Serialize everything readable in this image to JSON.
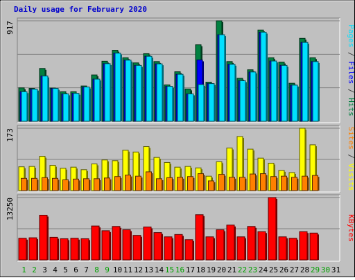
{
  "chart_data": {
    "type": "bar",
    "title": "Daily usage for February 2020",
    "days": [
      "1",
      "2",
      "3",
      "4",
      "5",
      "6",
      "7",
      "8",
      "9",
      "10",
      "11",
      "12",
      "13",
      "14",
      "15",
      "16",
      "17",
      "18",
      "19",
      "20",
      "21",
      "22",
      "23",
      "24",
      "25",
      "26",
      "27",
      "28",
      "29",
      "30",
      "31"
    ],
    "weekend_days": [
      1,
      2,
      8,
      9,
      15,
      16,
      22,
      23,
      29,
      30
    ],
    "panels": [
      {
        "id": "hits",
        "max_label": "917",
        "ymax": 917,
        "series": [
          {
            "name": "Hits",
            "color": "#008040",
            "values": [
              305,
              300,
              482,
              303,
              270,
              270,
              322,
              423,
              548,
              648,
              580,
              533,
              617,
              545,
              332,
              452,
              295,
              698,
              357,
              917,
              545,
              392,
              470,
              833,
              580,
              540,
              347,
              757,
              580
            ]
          },
          {
            "name": "Files",
            "color": "#0000ff",
            "values": [
              270,
              293,
              413,
              300,
              250,
              255,
              313,
              385,
              526,
              622,
              558,
              510,
              593,
              524,
              319,
              429,
              250,
              560,
              344,
              790,
              520,
              370,
              450,
              813,
              550,
              510,
              330,
              720,
              545
            ]
          },
          {
            "name": "Pages",
            "color": "#00e0ff",
            "values": [
              270,
              293,
              413,
              300,
              250,
              255,
              313,
              385,
              526,
              622,
              558,
              510,
              593,
              524,
              319,
              429,
              250,
              335,
              344,
              790,
              520,
              370,
              450,
              813,
              550,
              510,
              330,
              720,
              545
            ]
          }
        ],
        "axis_label_parts": [
          {
            "text": "Pages",
            "color": "#00e0ff"
          },
          {
            "text": " / ",
            "color": "#404040"
          },
          {
            "text": "Files",
            "color": "#0000ff"
          },
          {
            "text": " / ",
            "color": "#404040"
          },
          {
            "text": "Hits",
            "color": "#008040"
          }
        ]
      },
      {
        "id": "visits",
        "max_label": "173",
        "ymax": 173,
        "series": [
          {
            "name": "Visits",
            "color": "#ffff00",
            "values": [
              66,
              67,
              95,
              70,
              62,
              65,
              58,
              74,
              85,
              83,
              112,
              107,
              122,
              92,
              78,
              65,
              67,
              63,
              40,
              80,
              118,
              150,
              115,
              90,
              76,
              56,
              50,
              173,
              127
            ]
          },
          {
            "name": "Sites",
            "color": "#ff8000",
            "values": [
              34,
              34,
              36,
              34,
              30,
              32,
              33,
              33,
              35,
              39,
              43,
              40,
              52,
              33,
              36,
              37,
              39,
              47,
              27,
              45,
              37,
              37,
              46,
              47,
              39,
              40,
              37,
              40,
              42
            ]
          }
        ],
        "axis_label_parts": [
          {
            "text": "Sites",
            "color": "#ff8000"
          },
          {
            "text": " / ",
            "color": "#404040"
          },
          {
            "text": "Visits",
            "color": "#ffff00"
          }
        ]
      },
      {
        "id": "kbytes",
        "max_label": "13250",
        "ymax": 13250,
        "series": [
          {
            "name": "KBytes",
            "color": "#ff0000",
            "values": [
              4600,
              4700,
              9500,
              4800,
              4500,
              4600,
              4500,
              7200,
              6200,
              7100,
              6400,
              5200,
              7000,
              5800,
              4900,
              5400,
              4300,
              9600,
              4900,
              6400,
              7400,
              4900,
              7100,
              6000,
              13250,
              4900,
              4600,
              6000,
              5700
            ]
          }
        ],
        "axis_label_parts": [
          {
            "text": "KBytes",
            "color": "#ff0000"
          }
        ]
      }
    ]
  }
}
